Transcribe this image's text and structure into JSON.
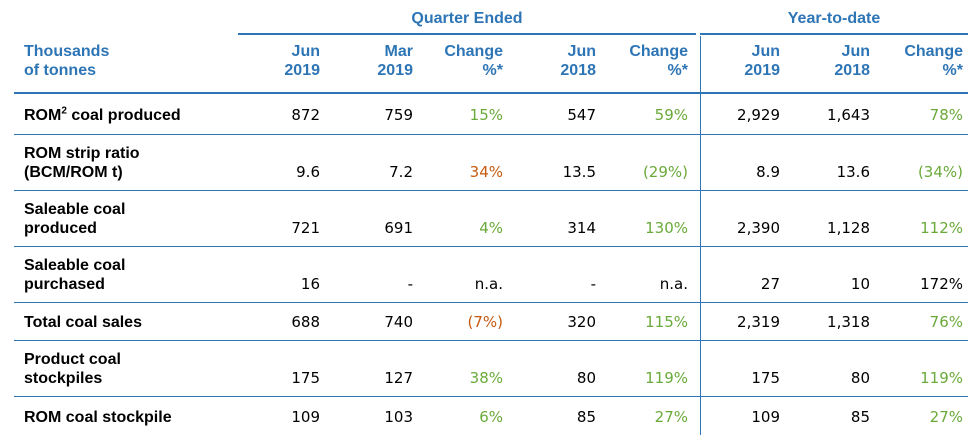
{
  "groups": {
    "quarter": "Quarter Ended",
    "ytd": "Year-to-date"
  },
  "headers": [
    "Thousands\nof tonnes",
    "Jun\n2019",
    "Mar\n2019",
    "Change\n%*",
    "Jun\n2018",
    "Change\n%*",
    "Jun\n2019",
    "Jun\n2018",
    "Change\n%*"
  ],
  "rows": [
    {
      "label": "ROM",
      "label_sup": "2",
      "label_rest": " coal produced",
      "values": [
        "872",
        "759",
        "15%",
        "547",
        "59%",
        "2,929",
        "1,643",
        "78%"
      ],
      "tone": [
        "",
        "",
        "pos",
        "",
        "pos",
        "",
        "",
        "pos"
      ]
    },
    {
      "label": "ROM strip ratio",
      "label2": "(BCM/ROM t)",
      "values": [
        "9.6",
        "7.2",
        "34%",
        "13.5",
        "(29%)",
        "8.9",
        "13.6",
        "(34%)"
      ],
      "tone": [
        "",
        "",
        "neg",
        "",
        "pos",
        "",
        "",
        "pos"
      ]
    },
    {
      "label": "Saleable coal",
      "label2": "produced",
      "values": [
        "721",
        "691",
        "4%",
        "314",
        "130%",
        "2,390",
        "1,128",
        "112%"
      ],
      "tone": [
        "",
        "",
        "pos",
        "",
        "pos",
        "",
        "",
        "pos"
      ]
    },
    {
      "label": "Saleable coal",
      "label2": "purchased",
      "values": [
        "16",
        "-",
        "n.a.",
        "-",
        "n.a.",
        "27",
        "10",
        "172%"
      ],
      "tone": [
        "",
        "",
        "",
        "",
        "",
        "",
        "",
        ""
      ]
    },
    {
      "label": "Total coal sales",
      "values": [
        "688",
        "740",
        "(7%)",
        "320",
        "115%",
        "2,319",
        "1,318",
        "76%"
      ],
      "tone": [
        "",
        "",
        "neg",
        "",
        "pos",
        "",
        "",
        "pos"
      ]
    },
    {
      "label": "Product coal",
      "label2": "stockpiles",
      "values": [
        "175",
        "127",
        "38%",
        "80",
        "119%",
        "175",
        "80",
        "119%"
      ],
      "tone": [
        "",
        "",
        "pos",
        "",
        "pos",
        "",
        "",
        "pos"
      ]
    },
    {
      "label": "ROM coal stockpile",
      "values": [
        "109",
        "103",
        "6%",
        "85",
        "27%",
        "109",
        "85",
        "27%"
      ],
      "tone": [
        "",
        "",
        "pos",
        "",
        "pos",
        "",
        "",
        "pos"
      ]
    }
  ]
}
